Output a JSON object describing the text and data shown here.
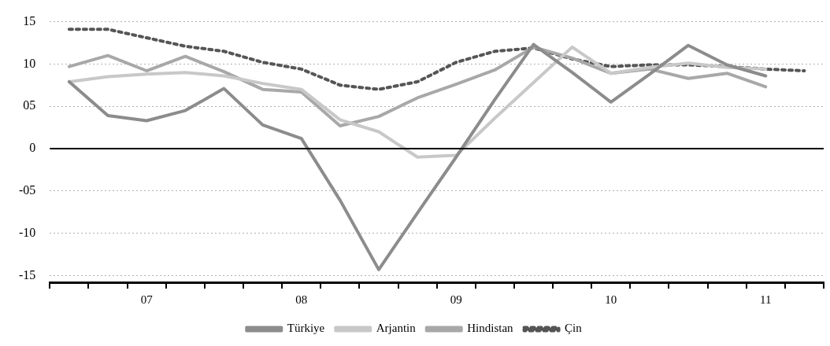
{
  "chart_data": {
    "type": "line",
    "categories": [
      null,
      null,
      "07",
      null,
      null,
      null,
      "08",
      null,
      null,
      null,
      "09",
      null,
      null,
      null,
      "10",
      null,
      null,
      null,
      "11",
      null
    ],
    "series": [
      {
        "name": "Türkiye",
        "color": "#8c8c8c",
        "values": [
          7.9,
          3.9,
          3.3,
          4.5,
          7.1,
          2.8,
          1.2,
          -6.1,
          -14.3,
          -7.6,
          -1.0,
          5.8,
          12.3,
          9.0,
          5.5,
          8.8,
          12.2,
          9.9,
          8.6,
          null
        ]
      },
      {
        "name": "Arjantin",
        "color": "#c8c8c8",
        "values": [
          7.9,
          8.5,
          8.8,
          9.0,
          8.6,
          7.7,
          7.0,
          3.4,
          2.0,
          -1.0,
          -0.8,
          3.6,
          7.8,
          12.0,
          8.9,
          9.6,
          10.1,
          9.6,
          9.4,
          null
        ]
      },
      {
        "name": "Hindistan",
        "color": "#a8a8a8",
        "values": [
          9.7,
          11.0,
          9.2,
          10.9,
          9.1,
          7.0,
          6.7,
          2.7,
          3.8,
          6.0,
          7.6,
          9.3,
          12.0,
          10.7,
          8.9,
          9.4,
          8.3,
          8.9,
          7.3,
          null
        ]
      },
      {
        "name": "Çin",
        "color": "#555555",
        "line_style": "dotted",
        "values": [
          14.1,
          14.1,
          13.1,
          12.1,
          11.5,
          10.2,
          9.4,
          7.5,
          7.0,
          7.9,
          10.2,
          11.5,
          11.9,
          10.6,
          9.7,
          9.9,
          9.9,
          9.7,
          9.4,
          9.2
        ]
      }
    ],
    "ylim": [
      -15.8,
      15
    ],
    "yticks": [
      15,
      10,
      {
        "value": 5,
        "label": "05"
      },
      0,
      {
        "value": -5,
        "label": "-05"
      },
      -10,
      -15
    ],
    "ref_lines": [
      {
        "axis": "y",
        "value": 0,
        "color": "#000000"
      }
    ],
    "grid": "y",
    "legend": "bottom",
    "marker": "none",
    "line_style": "solid"
  }
}
